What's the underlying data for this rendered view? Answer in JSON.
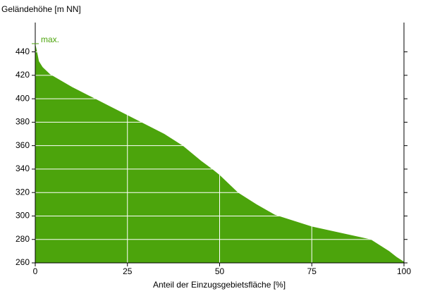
{
  "chart_data": {
    "type": "area",
    "ylabel": "Geländehöhe [m NN]",
    "xlabel": "Anteil der Einzugsgebietsfläche [%]",
    "annotation": {
      "text": "max.",
      "value": 447
    },
    "color": "#4ca40c",
    "grid": true,
    "x": [
      0,
      0.5,
      1,
      2,
      4,
      10,
      20,
      25,
      35,
      40,
      45,
      48,
      50,
      55,
      60,
      65,
      75,
      91,
      96,
      98,
      100
    ],
    "values": [
      447,
      440,
      432,
      427,
      421,
      410,
      394,
      386,
      370,
      360,
      347,
      340,
      335,
      320,
      310,
      301,
      291,
      280,
      270,
      265,
      261
    ],
    "xlim": [
      0,
      100
    ],
    "xticks": [
      0,
      25,
      50,
      75,
      100
    ],
    "ylim": [
      260,
      465
    ],
    "yticks": [
      260,
      280,
      300,
      320,
      340,
      360,
      380,
      400,
      420,
      440
    ]
  }
}
